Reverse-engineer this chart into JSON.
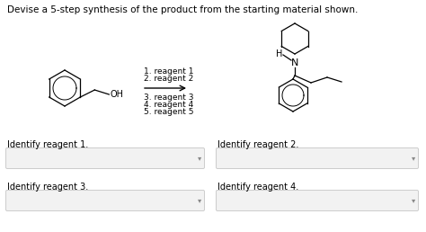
{
  "title": "Devise a 5-step synthesis of the product from the starting material shown.",
  "title_fontsize": 7.5,
  "background_color": "#ffffff",
  "reagents_above": [
    "1. reagent 1",
    "2. reagent 2"
  ],
  "reagents_below": [
    "3. reagent 3",
    "4. reagent 4",
    "5. reagent 5"
  ],
  "label_reagent1": "Identify reagent 1.",
  "label_reagent2": "Identify reagent 2.",
  "label_reagent3": "Identify reagent 3.",
  "label_reagent4": "Identify reagent 4.",
  "text_fontsize": 7.0,
  "box_color": "#f2f2f2",
  "box_edge_color": "#cccccc",
  "arrow_symbol": "▾"
}
